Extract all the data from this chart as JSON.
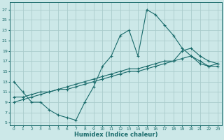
{
  "xlabel": "Humidex (Indice chaleur)",
  "background_color": "#cce8e8",
  "grid_color": "#aacccc",
  "line_color": "#1a6b6b",
  "xlim": [
    -0.5,
    23.5
  ],
  "ylim": [
    4.5,
    28.5
  ],
  "xticks": [
    0,
    1,
    2,
    3,
    4,
    5,
    6,
    7,
    8,
    9,
    10,
    11,
    12,
    13,
    14,
    15,
    16,
    17,
    18,
    19,
    20,
    21,
    22,
    23
  ],
  "yticks": [
    5,
    7,
    9,
    11,
    13,
    15,
    17,
    19,
    21,
    23,
    25,
    27
  ],
  "curve1_x": [
    0,
    1,
    2,
    3,
    4,
    5,
    6,
    7,
    8,
    9,
    10,
    11,
    12,
    13,
    14,
    15,
    16,
    17,
    18,
    19,
    20,
    21,
    22,
    23
  ],
  "curve1_y": [
    13,
    11,
    9,
    9,
    7.5,
    6.5,
    6,
    5.5,
    9,
    12,
    16,
    18,
    22,
    23,
    18,
    27,
    26,
    24,
    22,
    19.5,
    18,
    16.5,
    16,
    16.5
  ],
  "curve2_x": [
    0,
    1,
    2,
    3,
    4,
    5,
    6,
    7,
    8,
    9,
    10,
    11,
    12,
    13,
    14,
    15,
    16,
    17,
    18,
    19,
    20,
    21,
    22,
    23
  ],
  "curve2_y": [
    10,
    10,
    10.5,
    11,
    11,
    11.5,
    11.5,
    12,
    12.5,
    13,
    13.5,
    14,
    14.5,
    15,
    15,
    15.5,
    16,
    16.5,
    17,
    19,
    19.5,
    18,
    17,
    16.5
  ],
  "curve3_x": [
    0,
    1,
    2,
    3,
    4,
    5,
    6,
    7,
    8,
    9,
    10,
    11,
    12,
    13,
    14,
    15,
    16,
    17,
    18,
    19,
    20,
    21,
    22,
    23
  ],
  "curve3_y": [
    9,
    9.5,
    10,
    10.5,
    11,
    11.5,
    12,
    12.5,
    13,
    13.5,
    14,
    14.5,
    15,
    15.5,
    15.5,
    16,
    16.5,
    17,
    17,
    17.5,
    18,
    17,
    16,
    16
  ]
}
